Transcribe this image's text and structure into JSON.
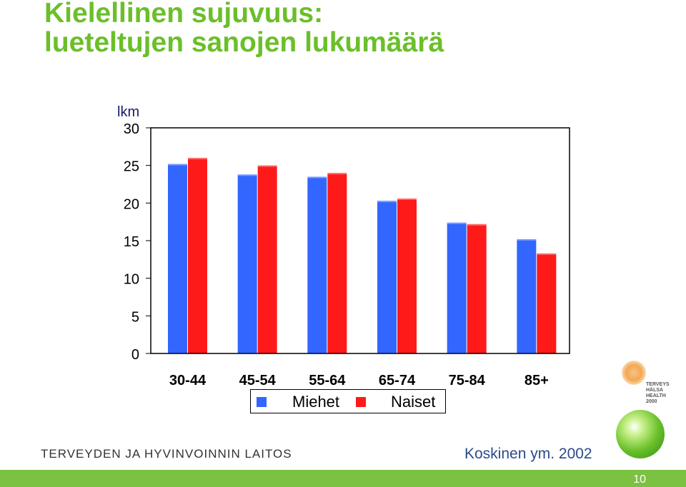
{
  "title": {
    "line1": "Kielellinen sujuvuus:",
    "line2": "lueteltujen sanojen lukumäärä"
  },
  "chart_data": {
    "type": "bar",
    "title": "",
    "ylabel": "lkm",
    "xlabel": "",
    "categories": [
      "30-44",
      "45-54",
      "55-64",
      "65-74",
      "75-84",
      "85+"
    ],
    "series": [
      {
        "name": "Miehet",
        "color": "#3366ff",
        "values": [
          25.2,
          23.8,
          23.5,
          20.3,
          17.4,
          15.2
        ]
      },
      {
        "name": "Naiset",
        "color": "#ff1a1a",
        "values": [
          26.0,
          25.0,
          24.0,
          20.6,
          17.2,
          13.3
        ]
      }
    ],
    "ylim": [
      0,
      30
    ],
    "yticks": [
      0,
      5,
      10,
      15,
      20,
      25,
      30
    ],
    "grid": false,
    "legend_position": "bottom"
  },
  "legend": {
    "miehet": "Miehet",
    "naiset": "Naiset"
  },
  "colors": {
    "title": "#6bbf2a",
    "miehet": "#3366ff",
    "naiset": "#ff1a1a",
    "footer": "#7bc142"
  },
  "footer": {
    "org": "TERVEYDEN JA HYVINVOINNIN LAITOS",
    "source": "Koskinen ym. 2002",
    "page": "10"
  },
  "logo": {
    "text": "TERVEYS HÄLSA HEALTH 2000"
  },
  "icons": [
    "terveys-2000-logo-icon",
    "green-globe-icon"
  ]
}
